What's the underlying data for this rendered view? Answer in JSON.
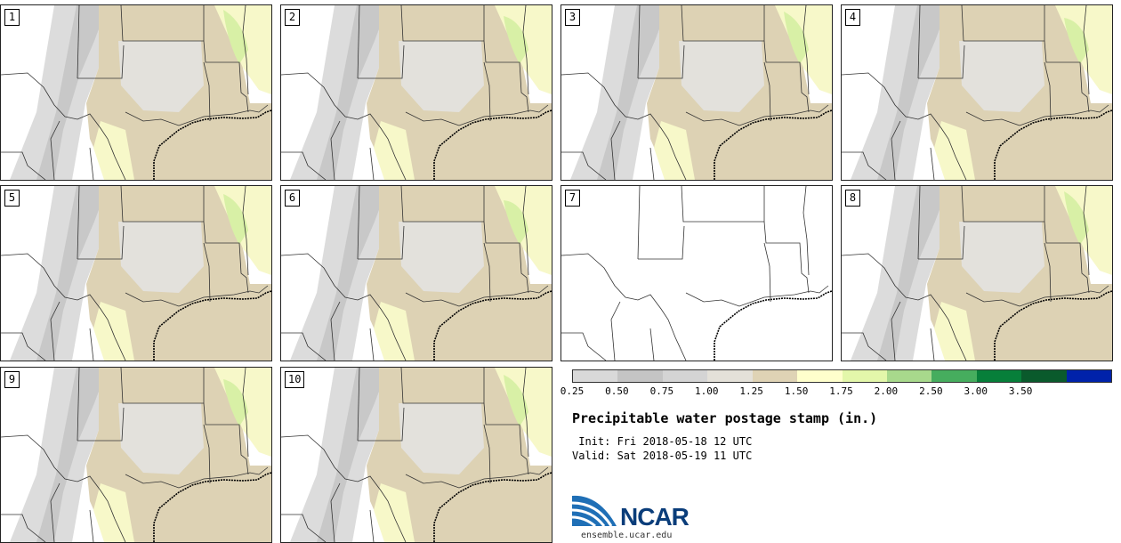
{
  "panels": [
    "1",
    "2",
    "3",
    "4",
    "5",
    "6",
    "7",
    "8",
    "9",
    "10"
  ],
  "empty_panel": "7",
  "colorbar": {
    "colors": [
      "#d9d9d9",
      "#c4c4c4",
      "#d4d4d4",
      "#e4e1d9",
      "#dfd3b5",
      "#ffffcc",
      "#e3f7aa",
      "#a8d98c",
      "#46ad5e",
      "#077f3a",
      "#0a5a2c",
      "#0022aa"
    ],
    "labels": [
      "0.25",
      "0.50",
      "0.75",
      "1.00",
      "1.25",
      "1.50",
      "1.75",
      "2.00",
      "2.50",
      "3.00",
      "3.50"
    ]
  },
  "title": "Precipitable water postage stamp (in.)",
  "init": " Init: Fri 2018-05-18 12 UTC",
  "valid": "Valid: Sat 2018-05-19 11 UTC",
  "logo": {
    "text": "NCAR",
    "url": "ensemble.ucar.edu"
  }
}
